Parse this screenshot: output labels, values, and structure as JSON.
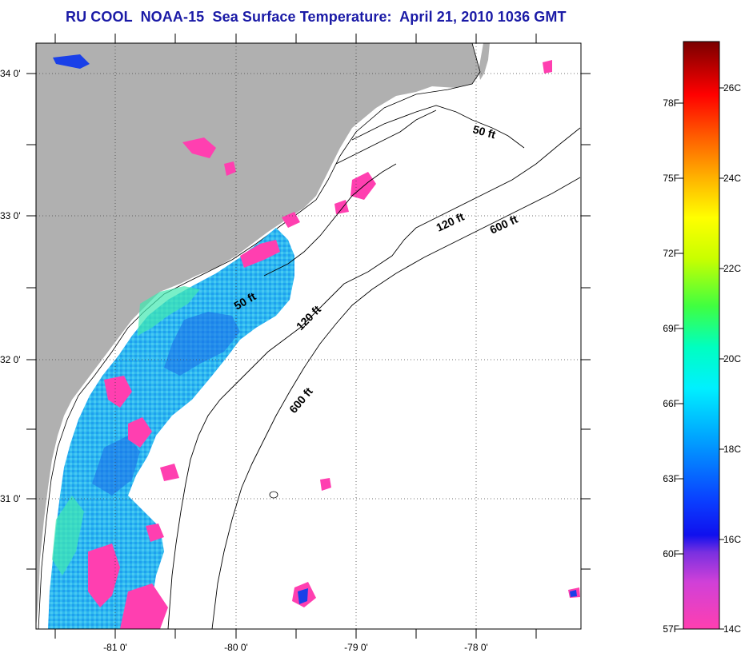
{
  "title": "RU COOL  NOAA-15  Sea Surface Temperature:  April 21, 2010 1036 GMT",
  "colors": {
    "land": "#b0b0b0",
    "title": "#1a1aa6"
  },
  "map": {
    "lat_ticks": [
      "34 0'",
      "33 0'",
      "32 0'",
      "31 0'"
    ],
    "lon_ticks": [
      "-81 0'",
      "-80 0'",
      "-79 0'",
      "-78 0'"
    ],
    "contours": [
      {
        "label": "50 ft"
      },
      {
        "label": "120 ft"
      },
      {
        "label": "600 ft"
      },
      {
        "label": "50 ft"
      },
      {
        "label": "120 ft"
      },
      {
        "label": "600 ft"
      }
    ]
  },
  "colorbar": {
    "fahrenheit": [
      "78F",
      "75F",
      "72F",
      "69F",
      "66F",
      "63F",
      "60F",
      "57F"
    ],
    "celsius": [
      "26C",
      "24C",
      "22C",
      "20C",
      "18C",
      "16C",
      "14C"
    ]
  }
}
